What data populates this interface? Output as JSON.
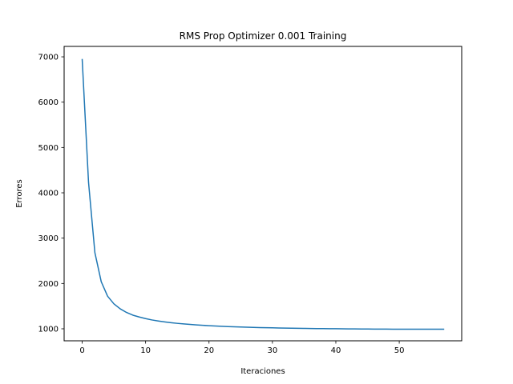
{
  "chart_data": {
    "type": "line",
    "title": "RMS Prop Optimizer 0.001 Training",
    "xlabel": "Iteraciones",
    "ylabel": "Errores",
    "xlim": [
      -2.85,
      59.85
    ],
    "ylim": [
      735,
      7230
    ],
    "xticks": [
      0,
      10,
      20,
      30,
      40,
      50
    ],
    "yticks": [
      1000,
      2000,
      3000,
      4000,
      5000,
      6000,
      7000
    ],
    "grid": false,
    "series": [
      {
        "color": "#1f77b4",
        "x": [
          0,
          1,
          2,
          3,
          4,
          5,
          6,
          7,
          8,
          9,
          10,
          11,
          12,
          13,
          14,
          15,
          16,
          17,
          18,
          19,
          20,
          21,
          22,
          23,
          24,
          25,
          26,
          27,
          28,
          29,
          30,
          31,
          32,
          33,
          34,
          35,
          36,
          37,
          38,
          39,
          40,
          41,
          42,
          43,
          44,
          45,
          46,
          47,
          48,
          49,
          50,
          51,
          52,
          53,
          54,
          55,
          56,
          57
        ],
        "y": [
          6940,
          4230,
          2680,
          2040,
          1720,
          1550,
          1440,
          1360,
          1300,
          1260,
          1225,
          1195,
          1172,
          1152,
          1135,
          1120,
          1107,
          1096,
          1086,
          1077,
          1069,
          1062,
          1055,
          1049,
          1044,
          1039,
          1035,
          1031,
          1027,
          1024,
          1021,
          1018,
          1016,
          1013,
          1011,
          1009,
          1007,
          1005,
          1004,
          1002,
          1001,
          999,
          998,
          997,
          996,
          995,
          994,
          993,
          993,
          992,
          992,
          991,
          991,
          990,
          990,
          990,
          990,
          990
        ]
      }
    ]
  }
}
